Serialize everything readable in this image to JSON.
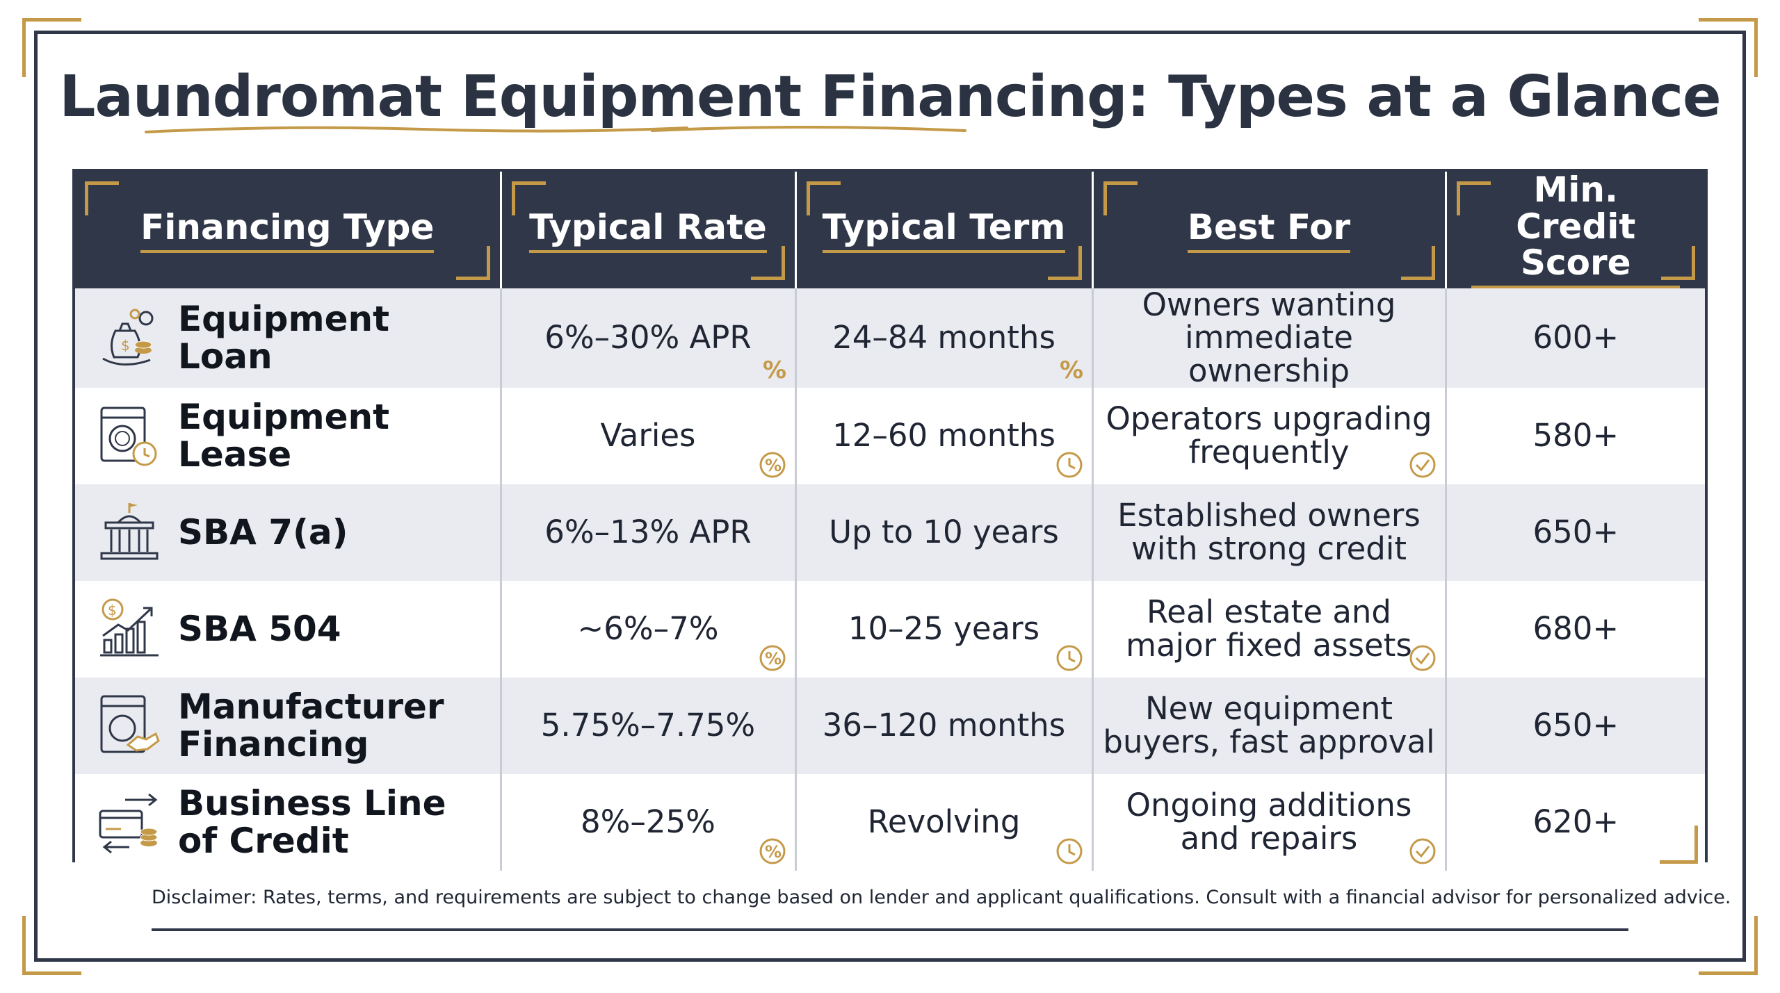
{
  "title": "Laundromat Equipment Financing: Types at a Glance",
  "colors": {
    "navy": "#2f3748",
    "gold": "#c49a48",
    "row_shade": "#e9ebf0"
  },
  "headers": {
    "type": "Financing Type",
    "rate": "Typical Rate",
    "term": "Typical Term",
    "best": "Best For",
    "score": "Min. Credit Score"
  },
  "rows": [
    {
      "icon": "money-bag-gears-icon",
      "type": "Equipment Loan",
      "rate": "6%–30% APR",
      "rate_icon": "percent-icon",
      "term": "24–84 months",
      "term_icon": "percent-icon",
      "best": "Owners wanting immediate ownership",
      "best_icon": "",
      "score": "600+"
    },
    {
      "icon": "washer-clock-icon",
      "type": "Equipment Lease",
      "rate": "Varies",
      "rate_icon": "percent-circle-icon",
      "term": "12–60 months",
      "term_icon": "clock-icon",
      "best": "Operators upgrading frequently",
      "best_icon": "check-circle-icon",
      "score": "580+"
    },
    {
      "icon": "government-building-icon",
      "type": "SBA 7(a)",
      "rate": "6%–13% APR",
      "rate_icon": "",
      "term": "Up to 10 years",
      "term_icon": "",
      "best": "Established owners with strong credit",
      "best_icon": "",
      "score": "650+"
    },
    {
      "icon": "growth-chart-dollar-icon",
      "type": "SBA 504",
      "rate": "~6%–7%",
      "rate_icon": "percent-circle-icon",
      "term": "10–25 years",
      "term_icon": "clock-icon",
      "best": "Real estate and major fixed assets",
      "best_icon": "check-circle-icon",
      "score": "680+"
    },
    {
      "icon": "washer-handshake-icon",
      "type": "Manufacturer Financing",
      "rate": "5.75%–7.75%",
      "rate_icon": "",
      "term": "36–120 months",
      "term_icon": "",
      "best": "New equipment buyers, fast approval",
      "best_icon": "",
      "score": "650+"
    },
    {
      "icon": "credit-card-exchange-icon",
      "type": "Business Line of Credit",
      "rate": "8%–25%",
      "rate_icon": "percent-circle-icon",
      "term": "Revolving",
      "term_icon": "clock-icon",
      "best": "Ongoing additions and repairs",
      "best_icon": "check-circle-icon",
      "score": "620+"
    }
  ],
  "disclaimer": "Disclaimer: Rates, terms, and requirements are subject to change based on lender and applicant qualifications. Consult with a financial advisor for personalized advice."
}
